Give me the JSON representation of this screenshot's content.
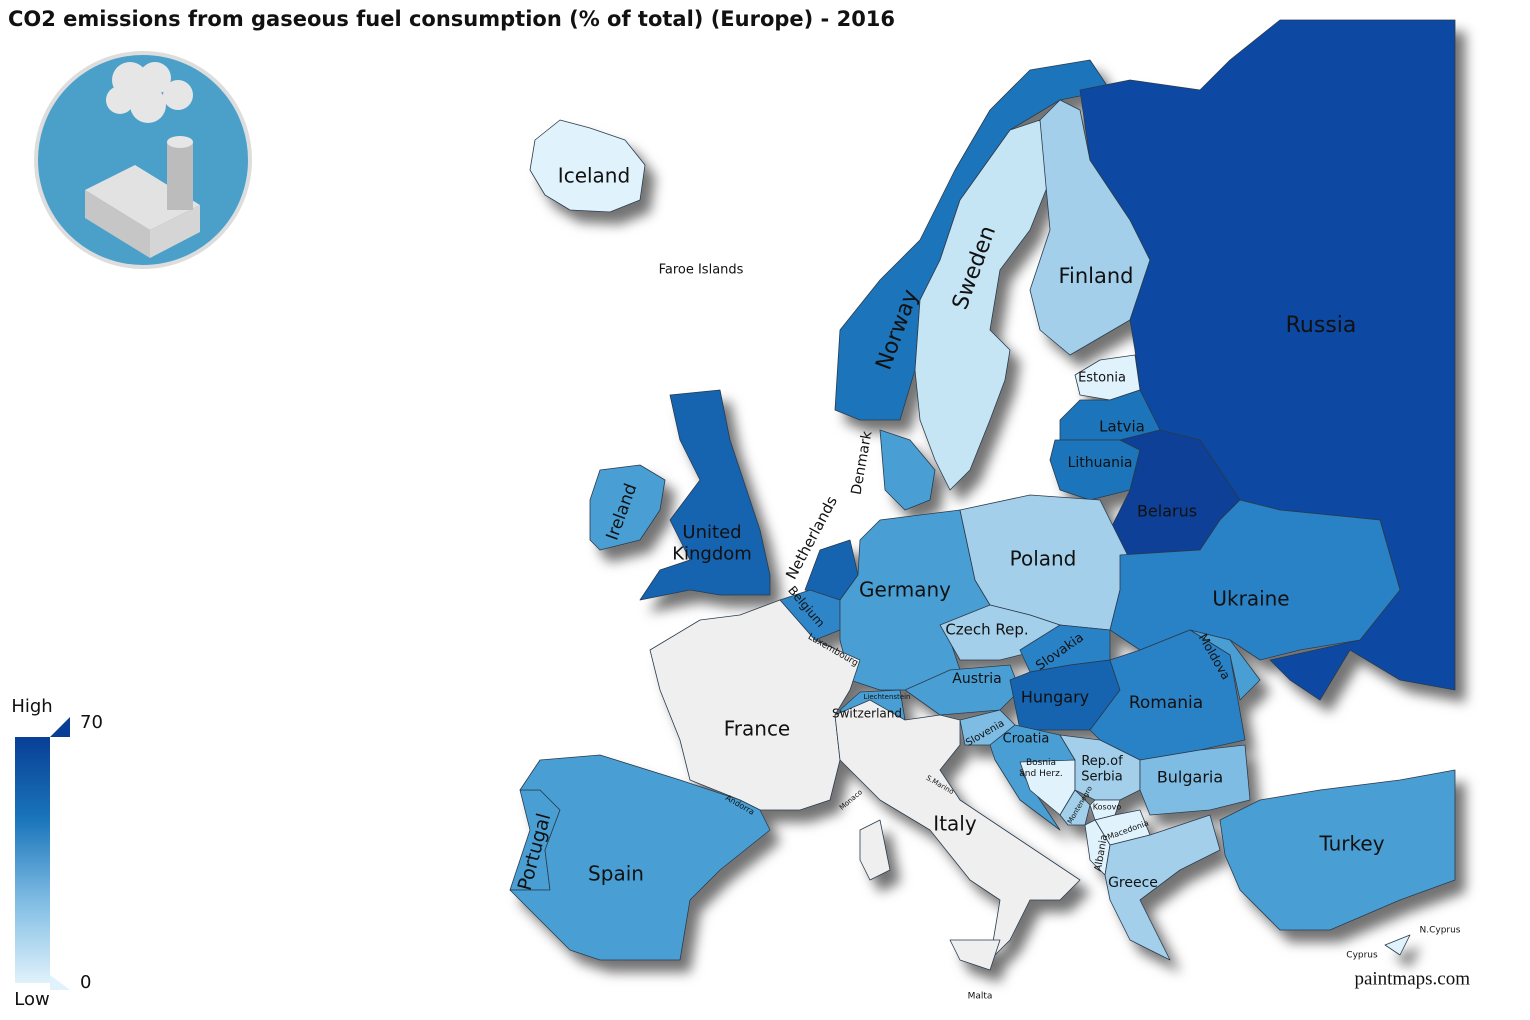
{
  "title": "CO2 emissions from gaseous fuel consumption (% of total) (Europe) - 2016",
  "legend": {
    "high_label": "High",
    "low_label": "Low",
    "max": 70,
    "min": 0,
    "colors": [
      "#e0f2fb",
      "#7fbce3",
      "#1a75bb",
      "#083f96"
    ]
  },
  "credit": "paintmaps.com",
  "countries": [
    {
      "label": "Iceland",
      "color": "#e0f2fb"
    },
    {
      "label": "Faroe Islands"
    },
    {
      "label": "Norway",
      "color": "#1a75bb"
    },
    {
      "label": "Sweden",
      "color": "#c5e4f4"
    },
    {
      "label": "Finland",
      "color": "#a3cfea"
    },
    {
      "label": "Russia",
      "color": "#0a4aa3"
    },
    {
      "label": "Estonia",
      "color": "#e0f2fb"
    },
    {
      "label": "Latvia",
      "color": "#1a75bb"
    },
    {
      "label": "Lithuania",
      "color": "#1a75bb"
    },
    {
      "label": "Belarus",
      "color": "#083f96"
    },
    {
      "label": "Ireland",
      "color": "#4a9fd4"
    },
    {
      "label": [
        "United",
        "Kingdom"
      ],
      "color": "#1264b0"
    },
    {
      "label": "Denmark",
      "color": "#4a9fd4"
    },
    {
      "label": "Netherlands",
      "color": "#1264b0"
    },
    {
      "label": "Belgium",
      "color": "#2f86c8"
    },
    {
      "label": "Luxembourg"
    },
    {
      "label": "Germany",
      "color": "#4a9fd4"
    },
    {
      "label": "Poland",
      "color": "#a3cfea"
    },
    {
      "label": "Ukraine",
      "color": "#2a82c6"
    },
    {
      "label": "Czech Rep.",
      "color": "#a3cfea"
    },
    {
      "label": "Slovakia",
      "color": "#2a82c6"
    },
    {
      "label": "Austria",
      "color": "#4a9fd4"
    },
    {
      "label": "Hungary",
      "color": "#1264b0"
    },
    {
      "label": "Moldova",
      "color": "#4a9fd4"
    },
    {
      "label": "Romania",
      "color": "#2a82c6"
    },
    {
      "label": "France",
      "color": "#efefef"
    },
    {
      "label": "Switzerland",
      "color": "#4a9fd4"
    },
    {
      "label": "Liechtenstein"
    },
    {
      "label": "Slovenia",
      "color": "#7fbce3"
    },
    {
      "label": "Croatia",
      "color": "#4a9fd4"
    },
    {
      "label": [
        "Bosnia",
        "and Herz."
      ],
      "color": "#e0f2fb"
    },
    {
      "label": [
        "Rep.of",
        "Serbia"
      ],
      "color": "#a3cfea"
    },
    {
      "label": "Bulgaria",
      "color": "#7fbce3"
    },
    {
      "label": "Montenegro",
      "color": "#a3cfea"
    },
    {
      "label": "Kosovo",
      "color": "#e0f2fb"
    },
    {
      "label": "Macedonia",
      "color": "#e0f2fb"
    },
    {
      "label": "Albania",
      "color": "#e0f2fb"
    },
    {
      "label": "Italy",
      "color": "#efefef"
    },
    {
      "label": "S.Marino"
    },
    {
      "label": "Monaco"
    },
    {
      "label": "Andorra"
    },
    {
      "label": "Portugal",
      "color": "#4a9fd4"
    },
    {
      "label": "Spain",
      "color": "#4a9fd4"
    },
    {
      "label": "Greece",
      "color": "#a3cfea"
    },
    {
      "label": "Turkey",
      "color": "#4a9fd4"
    },
    {
      "label": "Cyprus",
      "color": "#e0f2fb"
    },
    {
      "label": "N.Cyprus"
    },
    {
      "label": "Malta"
    }
  ]
}
